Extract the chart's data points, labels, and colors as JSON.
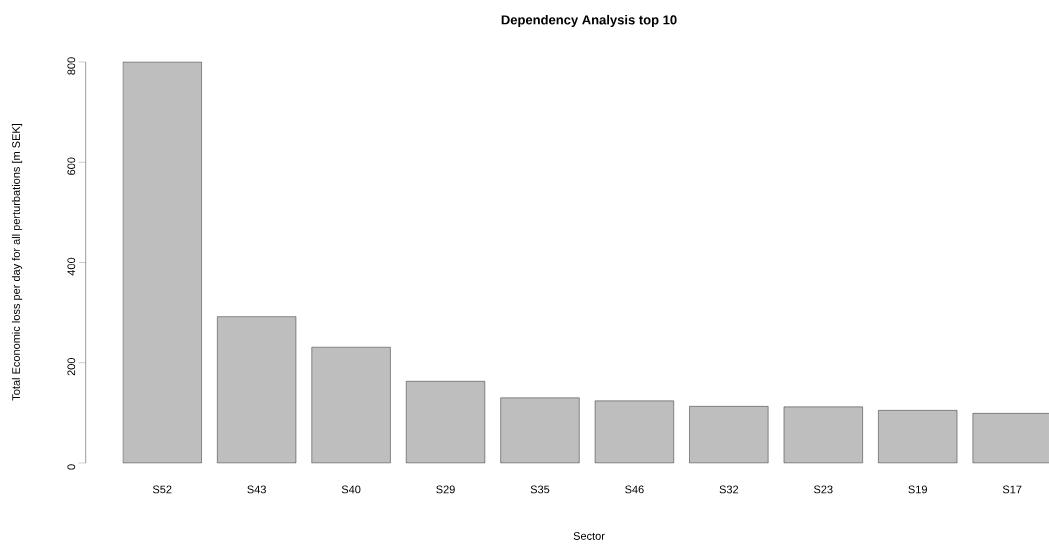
{
  "chart_data": {
    "type": "bar",
    "title": "Dependency Analysis top 10",
    "xlabel": "Sector",
    "ylabel": "Total Economic loss per day for all perturbations [m SEK]",
    "categories": [
      "S52",
      "S43",
      "S40",
      "S29",
      "S35",
      "S46",
      "S32",
      "S23",
      "S19",
      "S17"
    ],
    "values": [
      800,
      292,
      231,
      163,
      130,
      124,
      113,
      112,
      105,
      99
    ],
    "color": "#bebebe",
    "ylim": [
      0,
      800
    ],
    "yticks": [
      0,
      200,
      400,
      600,
      800
    ],
    "grid": false
  }
}
